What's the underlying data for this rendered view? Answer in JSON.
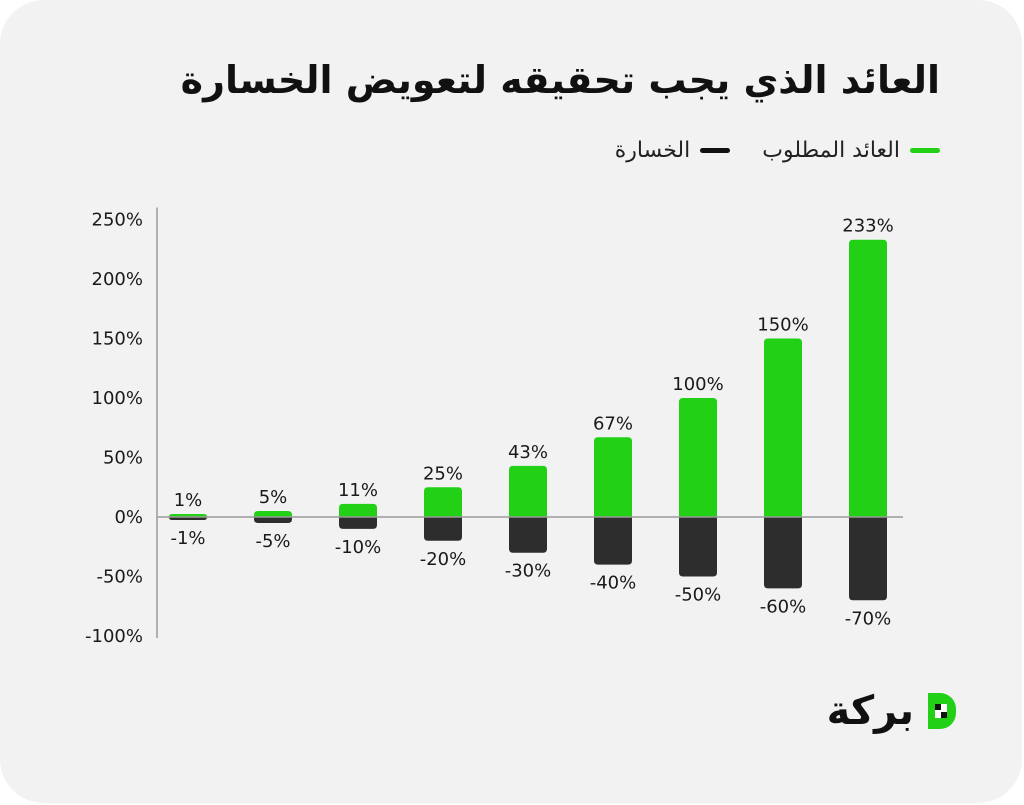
{
  "header": {
    "title": "العائد الذي يجب تحقيقه لتعويض الخسارة"
  },
  "legend": {
    "required_return_label": "العائد المطلوب",
    "loss_label": "الخسارة"
  },
  "colors": {
    "green": "#22d015",
    "dark": "#2d2d2d",
    "axis": "#9a9a9a",
    "background": "#f2f2f2"
  },
  "logo": {
    "text": "بركة",
    "icon": "baraka-logo-icon"
  },
  "chart_data": {
    "type": "bar",
    "title": "العائد الذي يجب تحقيقه لتعويض الخسارة",
    "xlabel": "",
    "ylabel": "",
    "ylim": [
      -100,
      250
    ],
    "yticks": [
      250,
      200,
      150,
      100,
      50,
      0,
      -50,
      -100
    ],
    "ytick_labels": [
      "250%",
      "200%",
      "150%",
      "100%",
      "50%",
      "0%",
      "-50%",
      "-100%"
    ],
    "grid": false,
    "legend_position": "top-right",
    "series": [
      {
        "name": "العائد المطلوب",
        "color": "#22d015",
        "values": [
          1,
          5,
          11,
          25,
          43,
          67,
          100,
          150,
          233
        ],
        "labels": [
          "1%",
          "5%",
          "11%",
          "25%",
          "43%",
          "67%",
          "100%",
          "150%",
          "233%"
        ]
      },
      {
        "name": "الخسارة",
        "color": "#2d2d2d",
        "values": [
          -1,
          -5,
          -10,
          -20,
          -30,
          -40,
          -50,
          -60,
          -70
        ],
        "labels": [
          "-1%",
          "-5%",
          "-10%",
          "-20%",
          "-30%",
          "-40%",
          "-50%",
          "-60%",
          "-70%"
        ]
      }
    ]
  }
}
